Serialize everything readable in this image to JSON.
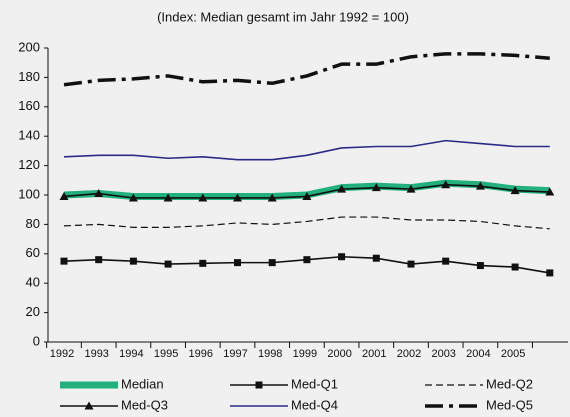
{
  "chart_data": {
    "type": "line",
    "title": "(Index: Median gesamt im Jahr 1992 = 100)",
    "categories": [
      "1992",
      "1993",
      "1994",
      "1995",
      "1996",
      "1997",
      "1998",
      "1999",
      "2000",
      "2001",
      "2002",
      "2003",
      "2004",
      "2005",
      null
    ],
    "ylim": [
      0,
      200
    ],
    "yticks": [
      0,
      20,
      40,
      60,
      80,
      100,
      120,
      140,
      160,
      180,
      200
    ],
    "grid": false,
    "series": [
      {
        "name": "Median",
        "color": "#22b07d",
        "width": 7,
        "dash": "none",
        "marker": "none",
        "values": [
          100,
          101,
          99,
          99,
          99,
          99,
          99,
          100,
          105,
          106,
          105,
          108,
          107,
          104,
          103
        ]
      },
      {
        "name": "Med-Q1",
        "color": "#111111",
        "width": 1.6,
        "dash": "none",
        "marker": "square",
        "values": [
          55,
          56,
          55,
          53,
          53.5,
          54,
          54,
          56,
          58,
          57,
          53,
          55,
          52,
          51,
          47
        ]
      },
      {
        "name": "Med-Q2",
        "color": "#111111",
        "width": 1.2,
        "dash": "7 4",
        "marker": "none",
        "values": [
          79,
          80,
          78,
          78,
          79,
          81,
          80,
          82,
          85,
          85,
          83,
          83,
          82,
          79,
          77
        ]
      },
      {
        "name": "Med-Q3",
        "color": "#111111",
        "width": 1.6,
        "dash": "none",
        "marker": "triangle",
        "values": [
          99,
          101,
          98,
          98,
          98,
          98,
          98,
          99,
          104,
          105,
          104,
          107,
          106,
          103,
          102
        ]
      },
      {
        "name": "Med-Q4",
        "color": "#2b2b86",
        "width": 1.6,
        "dash": "none",
        "marker": "none",
        "values": [
          126,
          127,
          127,
          125,
          126,
          124,
          124,
          127,
          132,
          133,
          133,
          137,
          135,
          133,
          133
        ]
      },
      {
        "name": "Med-Q5",
        "color": "#111111",
        "width": 3.5,
        "dash": "18 6 4 6",
        "marker": "none",
        "values": [
          175,
          178,
          179,
          181,
          177,
          178,
          176,
          181,
          189,
          189,
          194,
          196,
          196,
          195,
          193
        ]
      }
    ]
  }
}
